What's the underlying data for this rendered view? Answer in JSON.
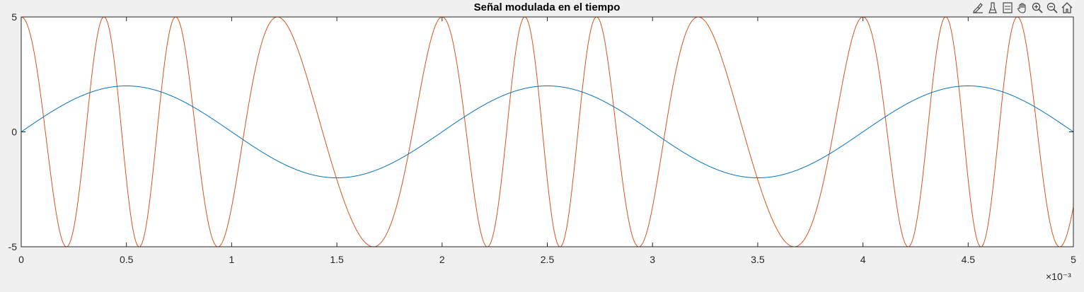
{
  "toolbar": {
    "buttons": [
      {
        "name": "brush-data-icon"
      },
      {
        "name": "data-cursor-icon"
      },
      {
        "name": "legend-icon"
      },
      {
        "name": "pan-hand-icon"
      },
      {
        "name": "zoom-in-icon"
      },
      {
        "name": "zoom-out-icon"
      },
      {
        "name": "home-restore-icon"
      }
    ]
  },
  "chart_data": {
    "type": "line",
    "title": "Señal modulada en el tiempo",
    "xlabel": "",
    "ylabel": "",
    "xlim": [
      0,
      0.005
    ],
    "ylim": [
      -5,
      5
    ],
    "x_exponent_label": "×10⁻³",
    "x_ticks": [
      0,
      0.0005,
      0.001,
      0.0015,
      0.002,
      0.0025,
      0.003,
      0.0035,
      0.004,
      0.0045,
      0.005
    ],
    "x_tick_labels": [
      "0",
      "0.5",
      "1",
      "1.5",
      "2",
      "2.5",
      "3",
      "3.5",
      "4",
      "4.5",
      "5"
    ],
    "y_ticks": [
      -5,
      0,
      5
    ],
    "y_tick_labels": [
      "-5",
      "0",
      "5"
    ],
    "grid": false,
    "legend": "none",
    "series": [
      {
        "color": "#0072BD",
        "function": "2*sin(2*pi*500*t)",
        "amplitude": 2,
        "frequency_hz": 500
      },
      {
        "color": "#D95319",
        "function": "5*cos(2*pi*2000*t + 8*pi*cumint(sin(2*pi*500*t)))",
        "amplitude": 5,
        "carrier_frequency_hz": 2000,
        "deviation_hz": 1000,
        "modulating_frequency_hz": 500
      }
    ]
  }
}
